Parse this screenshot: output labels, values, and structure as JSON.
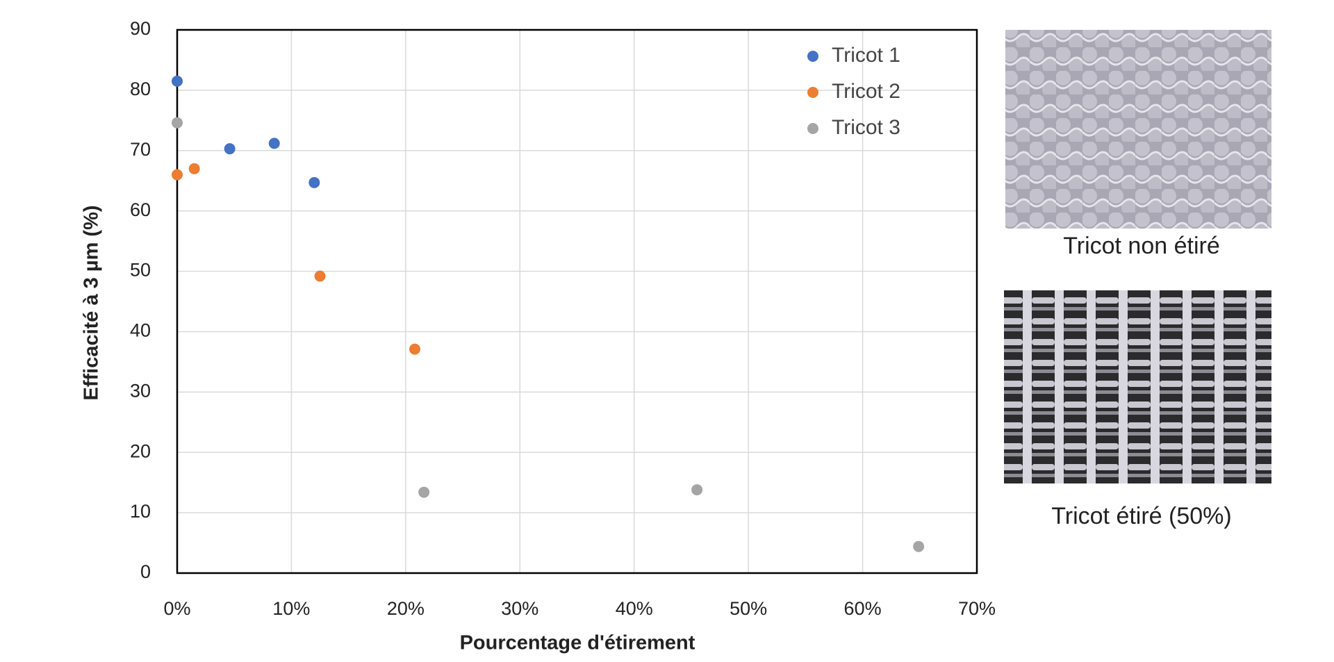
{
  "chart_data": {
    "type": "scatter",
    "x_label": "Pourcentage d'étirement",
    "y_label": "Efficacité à 3 µm (%)",
    "series": [
      {
        "name": "Tricot 1",
        "color": "#4472c4",
        "x": [
          0,
          4.6,
          8.5,
          12.0
        ],
        "values": [
          81.5,
          70.3,
          71.2,
          64.7
        ]
      },
      {
        "name": "Tricot 2",
        "color": "#ed7d31",
        "x": [
          0,
          1.5,
          12.5,
          20.8
        ],
        "values": [
          66.0,
          67.0,
          49.2,
          37.1
        ]
      },
      {
        "name": "Tricot 3",
        "color": "#a5a5a5",
        "x": [
          0,
          21.6,
          45.5,
          64.9
        ],
        "values": [
          74.6,
          13.4,
          13.8,
          4.4
        ]
      }
    ],
    "xlim": [
      0,
      70
    ],
    "xticks": [
      {
        "value": 0,
        "label": "0%"
      },
      {
        "value": 10,
        "label": "10%"
      },
      {
        "value": 20,
        "label": "20%"
      },
      {
        "value": 30,
        "label": "30%"
      },
      {
        "value": 40,
        "label": "40%"
      },
      {
        "value": 50,
        "label": "50%"
      },
      {
        "value": 60,
        "label": "60%"
      },
      {
        "value": 70,
        "label": "70%"
      }
    ],
    "ylim": [
      0,
      90
    ],
    "yticks": [
      0,
      10,
      20,
      30,
      40,
      50,
      60,
      70,
      80,
      90
    ],
    "grid": true,
    "legend": "upper right"
  },
  "figures": [
    {
      "caption": "Tricot non étiré"
    },
    {
      "caption": "Tricot étiré (50%)"
    }
  ]
}
